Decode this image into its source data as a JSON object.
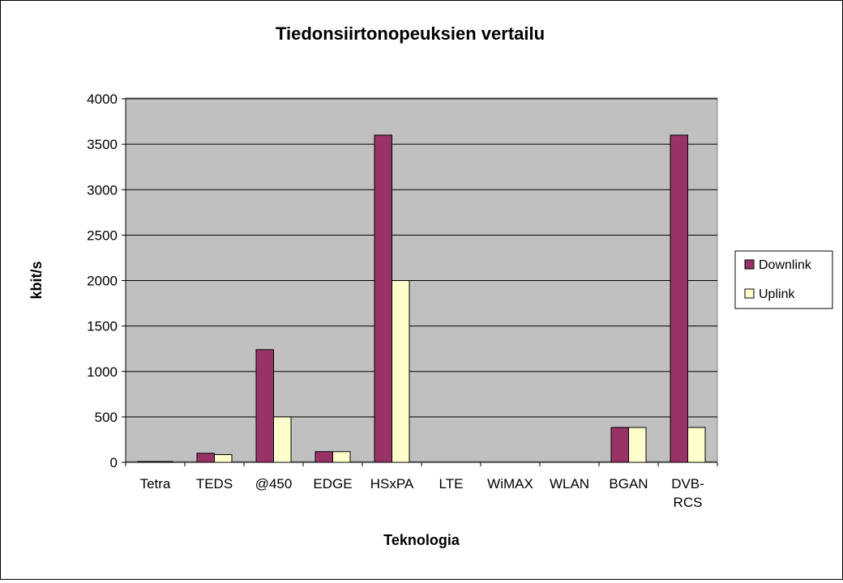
{
  "chart_data": {
    "type": "bar",
    "title": "Tiedonsiirtonopeuksien vertailu",
    "xlabel": "Teknologia",
    "ylabel": "kbit/s",
    "ylim": [
      0,
      4000
    ],
    "yticks": [
      0,
      500,
      1000,
      1500,
      2000,
      2500,
      3000,
      3500,
      4000
    ],
    "grid": true,
    "legend_position": "right",
    "categories": [
      "Tetra",
      "TEDS",
      "@450",
      "EDGE",
      "HSxPA",
      "LTE",
      "WiMAX",
      "WLAN",
      "BGAN",
      "DVB-RCS"
    ],
    "series": [
      {
        "name": "Downlink",
        "color": "#993366",
        "values": [
          9,
          100,
          1240,
          118,
          3600,
          0,
          0,
          0,
          384,
          3600
        ]
      },
      {
        "name": "Uplink",
        "color": "#ffffcc",
        "values": [
          9,
          85,
          500,
          118,
          2000,
          0,
          0,
          0,
          384,
          384
        ]
      }
    ],
    "plot_background": "#c0c0c0"
  }
}
